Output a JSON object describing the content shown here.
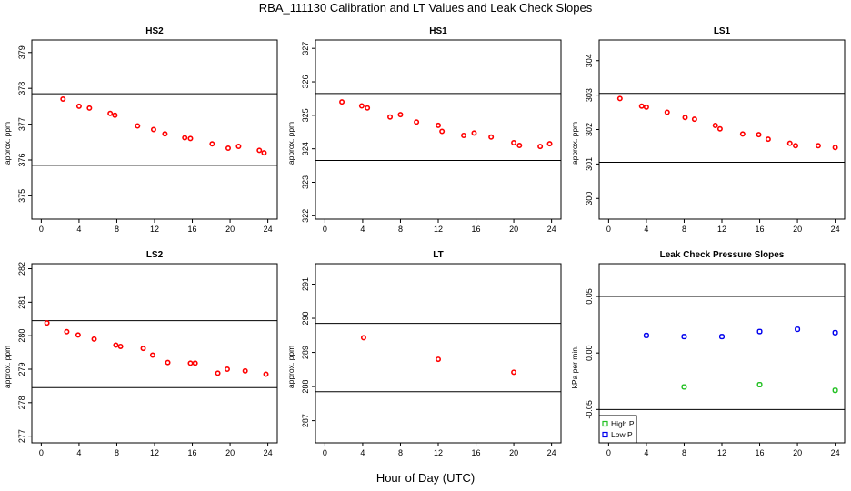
{
  "title": "RBA_111130  Calibration and LT Values and Leak Check Slopes",
  "xlabel": "Hour of Day (UTC)",
  "colors": {
    "red": "#ff0000",
    "green": "#22c022",
    "blue": "#0000ee",
    "line": "#000000"
  },
  "chart_data": [
    {
      "type": "scatter",
      "title": "HS2",
      "ylabel": "approx. ppm",
      "xlim": [
        -1,
        25
      ],
      "xticks": [
        "0",
        "4",
        "8",
        "12",
        "16",
        "20",
        "24"
      ],
      "ylim": [
        374.35,
        379.35
      ],
      "yticks": [
        "375",
        "376",
        "377",
        "378",
        "379"
      ],
      "hlines": [
        377.85,
        375.85
      ],
      "series": [
        {
          "color": "red",
          "x": [
            2.3,
            4.0,
            5.1,
            7.3,
            7.8,
            10.2,
            11.9,
            13.1,
            15.2,
            15.8,
            18.1,
            19.8,
            20.9,
            23.1,
            23.6
          ],
          "y": [
            377.7,
            377.5,
            377.45,
            377.3,
            377.25,
            376.95,
            376.85,
            376.73,
            376.62,
            376.6,
            376.45,
            376.33,
            376.38,
            376.27,
            376.2
          ]
        }
      ]
    },
    {
      "type": "scatter",
      "title": "HS1",
      "ylabel": "approx. ppm",
      "xlim": [
        -1,
        25
      ],
      "xticks": [
        "0",
        "4",
        "8",
        "12",
        "16",
        "20",
        "24"
      ],
      "ylim": [
        321.9,
        327.25
      ],
      "yticks": [
        "322",
        "323",
        "324",
        "325",
        "326",
        "327"
      ],
      "hlines": [
        325.65,
        323.65
      ],
      "series": [
        {
          "color": "red",
          "x": [
            1.8,
            3.9,
            4.5,
            6.9,
            8.0,
            9.7,
            12.0,
            12.4,
            14.7,
            15.8,
            17.6,
            20.0,
            20.6,
            22.8,
            23.8
          ],
          "y": [
            325.4,
            325.28,
            325.22,
            324.95,
            325.02,
            324.8,
            324.7,
            324.52,
            324.4,
            324.47,
            324.35,
            324.18,
            324.1,
            324.07,
            324.15
          ]
        }
      ]
    },
    {
      "type": "scatter",
      "title": "LS1",
      "ylabel": "approx. ppm",
      "xlim": [
        -1,
        25
      ],
      "xticks": [
        "0",
        "4",
        "8",
        "12",
        "16",
        "20",
        "24"
      ],
      "ylim": [
        299.4,
        304.6
      ],
      "yticks": [
        "300",
        "301",
        "302",
        "303",
        "304"
      ],
      "hlines": [
        303.05,
        301.05
      ],
      "series": [
        {
          "color": "red",
          "x": [
            1.2,
            3.5,
            4.0,
            6.2,
            8.1,
            9.1,
            11.3,
            11.8,
            14.2,
            15.9,
            16.9,
            19.2,
            19.8,
            22.2,
            24.0
          ],
          "y": [
            302.9,
            302.68,
            302.65,
            302.5,
            302.35,
            302.3,
            302.12,
            302.02,
            301.87,
            301.85,
            301.72,
            301.6,
            301.53,
            301.53,
            301.48
          ]
        }
      ]
    },
    {
      "type": "scatter",
      "title": "LS2",
      "ylabel": "approx. ppm",
      "xlim": [
        -1,
        25
      ],
      "xticks": [
        "0",
        "4",
        "8",
        "12",
        "16",
        "20",
        "24"
      ],
      "ylim": [
        276.8,
        282.15
      ],
      "yticks": [
        "277",
        "278",
        "279",
        "280",
        "281",
        "282"
      ],
      "hlines": [
        280.45,
        278.45
      ],
      "series": [
        {
          "color": "red",
          "x": [
            0.6,
            2.7,
            3.9,
            5.6,
            7.9,
            8.4,
            10.8,
            11.8,
            13.4,
            15.8,
            16.3,
            18.7,
            19.7,
            21.6,
            23.8
          ],
          "y": [
            280.38,
            280.12,
            280.02,
            279.9,
            279.72,
            279.68,
            279.62,
            279.42,
            279.2,
            279.18,
            279.18,
            278.88,
            279.0,
            278.95,
            278.85
          ]
        }
      ]
    },
    {
      "type": "scatter",
      "title": "LT",
      "ylabel": "approx. ppm",
      "xlim": [
        -1,
        25
      ],
      "xticks": [
        "0",
        "4",
        "8",
        "12",
        "16",
        "20",
        "24"
      ],
      "ylim": [
        286.35,
        291.6
      ],
      "yticks": [
        "287",
        "288",
        "289",
        "290",
        "291"
      ],
      "hlines": [
        289.85,
        287.85
      ],
      "series": [
        {
          "color": "red",
          "x": [
            4.1,
            12.0,
            20.0
          ],
          "y": [
            289.43,
            288.8,
            288.42
          ]
        }
      ]
    },
    {
      "type": "scatter",
      "title": "Leak Check Pressure Slopes",
      "ylabel": "kPa per min.",
      "xlim": [
        -1,
        25
      ],
      "xticks": [
        "0",
        "4",
        "8",
        "12",
        "16",
        "20",
        "24"
      ],
      "ylim": [
        -0.0795,
        0.079
      ],
      "yticks": [
        "-0.05",
        "0.00",
        "0.05"
      ],
      "hlines": [
        0.05,
        -0.05
      ],
      "legend": {
        "position": "bottom-left"
      },
      "series": [
        {
          "name": "High P",
          "color": "green",
          "x": [
            8.0,
            16.0,
            24.0
          ],
          "y": [
            -0.03,
            -0.028,
            -0.033
          ]
        },
        {
          "name": "Low P",
          "color": "blue",
          "x": [
            4.0,
            8.0,
            12.0,
            16.0,
            20.0,
            24.0
          ],
          "y": [
            0.0155,
            0.0145,
            0.0145,
            0.019,
            0.021,
            0.018
          ]
        }
      ]
    }
  ]
}
